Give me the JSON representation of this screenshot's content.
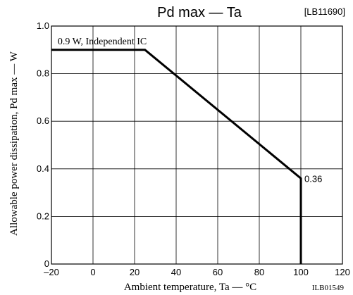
{
  "chart_data": {
    "type": "line",
    "title": "Pd max — Ta",
    "code_top": "[LB11690]",
    "code_bottom": "ILB01549",
    "xlabel": "Ambient temperature, Ta — °C",
    "ylabel": "Allowable power dissipation, Pd max — W",
    "xlim": [
      -20,
      120
    ],
    "ylim": [
      0,
      1.0
    ],
    "x_ticks": [
      -20,
      0,
      20,
      40,
      60,
      80,
      100,
      120
    ],
    "x_tick_labels": [
      "–20",
      "0",
      "20",
      "40",
      "60",
      "80",
      "100",
      "120"
    ],
    "y_ticks": [
      0,
      0.2,
      0.4,
      0.6,
      0.8,
      1.0
    ],
    "y_tick_labels": [
      "0",
      "0.2",
      "0.4",
      "0.6",
      "0.8",
      "1.0"
    ],
    "grid": true,
    "series": [
      {
        "x": [
          -20,
          25,
          100,
          100
        ],
        "y": [
          0.9,
          0.9,
          0.36,
          0
        ]
      }
    ],
    "annotations": [
      {
        "text": "0.9 W, Independent IC"
      },
      {
        "text": "0.36"
      }
    ]
  }
}
